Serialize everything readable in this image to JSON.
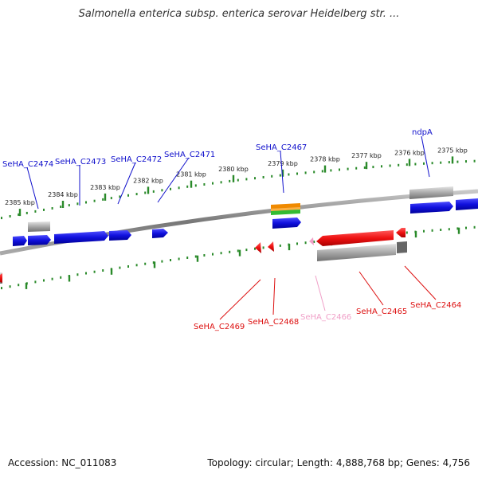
{
  "title": "Salmonella enterica subsp. enterica serovar Heidelberg str. ...",
  "footer": {
    "accession": "Accession: NC_011083",
    "topology": "Topology: circular; Length: 4,888,768 bp; Genes: 4,756"
  },
  "colors": {
    "forward_gene": "#1010dd",
    "reverse_gene": "#ee1111",
    "pseudo_gene": "#f0a0c8",
    "rna_orange": "#f08a00",
    "rna_green": "#33bb33",
    "cds_grey": "#a8a8a8",
    "backbone": "#888888",
    "ticks": "#2a8a2a"
  },
  "kbp_ticks": [
    {
      "label": "2385 kbp"
    },
    {
      "label": "2384 kbp"
    },
    {
      "label": "2383 kbp"
    },
    {
      "label": "2382 kbp"
    },
    {
      "label": "2381 kbp"
    },
    {
      "label": "2380 kbp"
    },
    {
      "label": "2379 kbp"
    },
    {
      "label": "2378 kbp"
    },
    {
      "label": "2377 kbp"
    },
    {
      "label": "2376 kbp"
    },
    {
      "label": "2375 kbp"
    }
  ],
  "gene_labels_top": [
    {
      "name": "SeHA_C2474"
    },
    {
      "name": "SeHA_C2473"
    },
    {
      "name": "SeHA_C2472"
    },
    {
      "name": "SeHA_C2471"
    },
    {
      "name": "SeHA_C2467"
    },
    {
      "name": "ndpA"
    }
  ],
  "gene_labels_bottom": [
    {
      "name": "SeHA_C2469"
    },
    {
      "name": "SeHA_C2468"
    },
    {
      "name": "SeHA_C2466"
    },
    {
      "name": "SeHA_C2465"
    },
    {
      "name": "SeHA_C2464"
    }
  ]
}
